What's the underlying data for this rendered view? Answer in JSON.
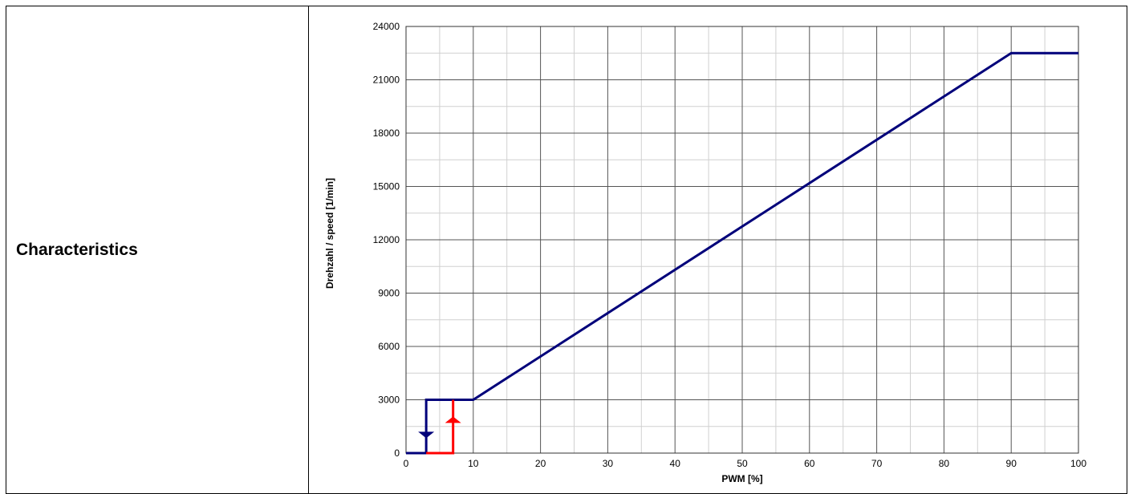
{
  "row_label": "Characteristics",
  "chart_data": {
    "type": "line",
    "title": "",
    "xlabel": "PWM [%]",
    "ylabel": "Drehzahl / speed [1/min]",
    "xlim": [
      0,
      100
    ],
    "ylim": [
      0,
      24000
    ],
    "x_ticks": [
      0,
      10,
      20,
      30,
      40,
      50,
      60,
      70,
      80,
      90,
      100
    ],
    "y_ticks": [
      0,
      3000,
      6000,
      9000,
      12000,
      15000,
      18000,
      21000,
      24000
    ],
    "grid": true,
    "series": [
      {
        "color": "#00007a",
        "points": [
          [
            0,
            0
          ],
          [
            3,
            0
          ],
          [
            3,
            3000
          ],
          [
            10,
            3000
          ],
          [
            90,
            22500
          ],
          [
            100,
            22500
          ]
        ]
      },
      {
        "color": "#ff0000",
        "points": [
          [
            3,
            0
          ],
          [
            7,
            0
          ],
          [
            7,
            3000
          ]
        ]
      }
    ],
    "markers": [
      {
        "x": 3,
        "y": 1200,
        "direction": "down",
        "color": "#00007a"
      },
      {
        "x": 7,
        "y": 1700,
        "direction": "up",
        "color": "#ff0000"
      }
    ]
  }
}
